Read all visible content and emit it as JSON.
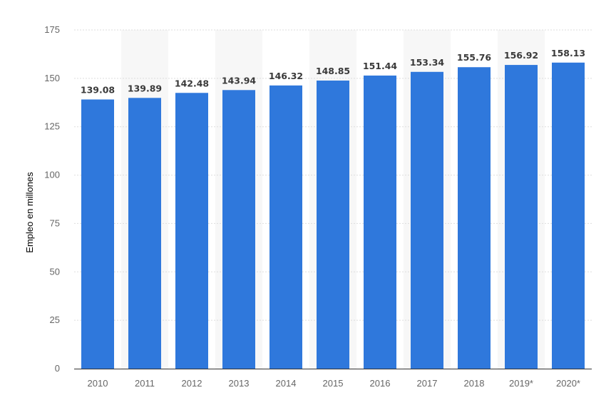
{
  "chart_data": {
    "type": "bar",
    "categories": [
      "2010",
      "2011",
      "2012",
      "2013",
      "2014",
      "2015",
      "2016",
      "2017",
      "2018",
      "2019*",
      "2020*"
    ],
    "values": [
      139.08,
      139.89,
      142.48,
      143.94,
      146.32,
      148.85,
      151.44,
      153.34,
      155.76,
      156.92,
      158.13
    ],
    "value_labels": [
      "139.08",
      "139.89",
      "142.48",
      "143.94",
      "146.32",
      "148.85",
      "151.44",
      "153.34",
      "155.76",
      "156.92",
      "158.13"
    ],
    "ylabel": "Empleo en millones",
    "xlabel": "",
    "ylim": [
      0,
      175
    ],
    "y_ticks": [
      "0",
      "25",
      "50",
      "75",
      "100",
      "125",
      "150",
      "175"
    ],
    "grid": true,
    "colors": {
      "bar": "#2f78dc",
      "alt_band": "#f7f7f7",
      "grid": "#dddddd"
    }
  }
}
